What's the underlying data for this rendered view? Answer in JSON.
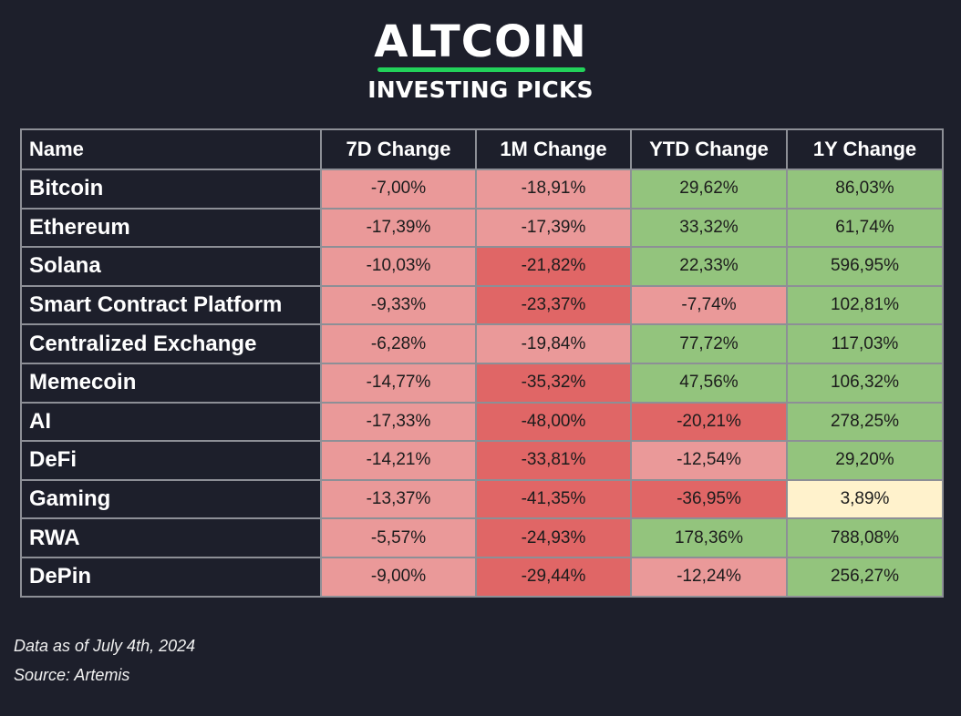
{
  "header": {
    "title": "ALTCOIN",
    "subtitle": "INVESTING PICKS",
    "accent_color": "#22d25a"
  },
  "colors": {
    "strong_negative": "#e06666",
    "negative": "#ea9999",
    "positive": "#93c47d",
    "neutral_positive": "#fff2cc"
  },
  "chart_data": {
    "type": "table",
    "columns": [
      "Name",
      "7D Change",
      "1M Change",
      "YTD Change",
      "1Y Change"
    ],
    "rows": [
      {
        "name": "Bitcoin",
        "values": [
          "-7,00%",
          "-18,91%",
          "29,62%",
          "86,03%"
        ],
        "numeric": [
          -7.0,
          -18.91,
          29.62,
          86.03
        ]
      },
      {
        "name": "Ethereum",
        "values": [
          "-17,39%",
          "-17,39%",
          "33,32%",
          "61,74%"
        ],
        "numeric": [
          -17.39,
          -17.39,
          33.32,
          61.74
        ]
      },
      {
        "name": "Solana",
        "values": [
          "-10,03%",
          "-21,82%",
          "22,33%",
          "596,95%"
        ],
        "numeric": [
          -10.03,
          -21.82,
          22.33,
          596.95
        ]
      },
      {
        "name": "Smart Contract Platform",
        "values": [
          "-9,33%",
          "-23,37%",
          "-7,74%",
          "102,81%"
        ],
        "numeric": [
          -9.33,
          -23.37,
          -7.74,
          102.81
        ]
      },
      {
        "name": "Centralized Exchange",
        "values": [
          "-6,28%",
          "-19,84%",
          "77,72%",
          "117,03%"
        ],
        "numeric": [
          -6.28,
          -19.84,
          77.72,
          117.03
        ]
      },
      {
        "name": "Memecoin",
        "values": [
          "-14,77%",
          "-35,32%",
          "47,56%",
          "106,32%"
        ],
        "numeric": [
          -14.77,
          -35.32,
          47.56,
          106.32
        ]
      },
      {
        "name": "AI",
        "values": [
          "-17,33%",
          "-48,00%",
          "-20,21%",
          "278,25%"
        ],
        "numeric": [
          -17.33,
          -48.0,
          -20.21,
          278.25
        ]
      },
      {
        "name": "DeFi",
        "values": [
          "-14,21%",
          "-33,81%",
          "-12,54%",
          "29,20%"
        ],
        "numeric": [
          -14.21,
          -33.81,
          -12.54,
          29.2
        ]
      },
      {
        "name": "Gaming",
        "values": [
          "-13,37%",
          "-41,35%",
          "-36,95%",
          "3,89%"
        ],
        "numeric": [
          -13.37,
          -41.35,
          -36.95,
          3.89
        ]
      },
      {
        "name": "RWA",
        "values": [
          "-5,57%",
          "-24,93%",
          "178,36%",
          "788,08%"
        ],
        "numeric": [
          -5.57,
          -24.93,
          178.36,
          788.08
        ]
      },
      {
        "name": "DePin",
        "values": [
          "-9,00%",
          "-29,44%",
          "-12,24%",
          "256,27%"
        ],
        "numeric": [
          -9.0,
          -29.44,
          -12.24,
          256.27
        ]
      }
    ],
    "cell_colors": [
      [
        "negative",
        "negative",
        "positive",
        "positive"
      ],
      [
        "negative",
        "negative",
        "positive",
        "positive"
      ],
      [
        "negative",
        "strong_negative",
        "positive",
        "positive"
      ],
      [
        "negative",
        "strong_negative",
        "negative",
        "positive"
      ],
      [
        "negative",
        "negative",
        "positive",
        "positive"
      ],
      [
        "negative",
        "strong_negative",
        "positive",
        "positive"
      ],
      [
        "negative",
        "strong_negative",
        "strong_negative",
        "positive"
      ],
      [
        "negative",
        "strong_negative",
        "negative",
        "positive"
      ],
      [
        "negative",
        "strong_negative",
        "strong_negative",
        "neutral_positive"
      ],
      [
        "negative",
        "strong_negative",
        "positive",
        "positive"
      ],
      [
        "negative",
        "strong_negative",
        "negative",
        "positive"
      ]
    ]
  },
  "footer": {
    "date_note": "Data as of July 4th, 2024",
    "source": "Source: Artemis"
  }
}
